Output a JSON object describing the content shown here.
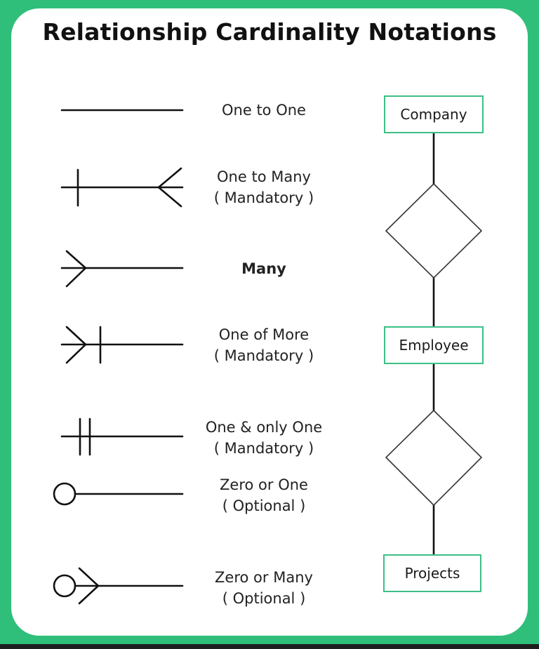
{
  "title": "Relationship Cardinality Notations",
  "notations": [
    {
      "line1": "One to One",
      "line2": ""
    },
    {
      "line1": "One to Many",
      "line2": "( Mandatory )"
    },
    {
      "line1": "Many",
      "line2": ""
    },
    {
      "line1": "One of More",
      "line2": "( Mandatory )"
    },
    {
      "line1": "One & only One",
      "line2": "( Mandatory )"
    },
    {
      "line1": "Zero or One",
      "line2": "( Optional )"
    },
    {
      "line1": "Zero or Many",
      "line2": "( Optional )"
    }
  ],
  "entities": {
    "company": "Company",
    "employee": "Employee",
    "projects": "Projects"
  },
  "colors": {
    "frame": "#2fbf7a",
    "entity_border": "#3cbf86",
    "stroke": "#111111"
  }
}
